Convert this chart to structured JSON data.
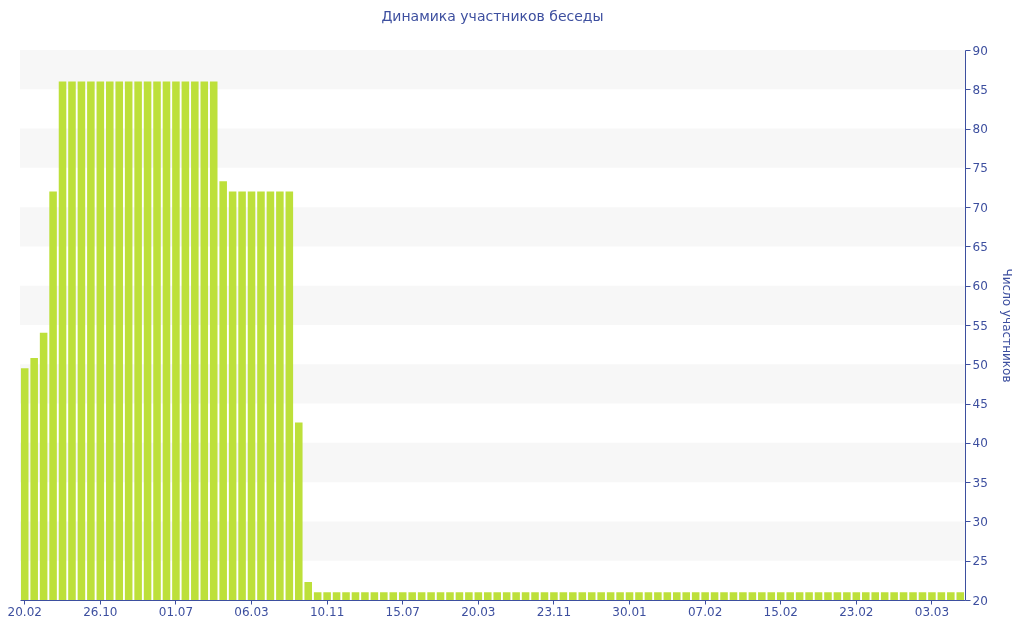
{
  "chart_data": {
    "type": "bar",
    "title": "Динамика участников беседы",
    "ylabel": "Число участников",
    "categories": [
      "20.02",
      null,
      null,
      null,
      null,
      null,
      null,
      null,
      "26.10",
      null,
      null,
      null,
      null,
      null,
      null,
      null,
      "01.07",
      null,
      null,
      null,
      null,
      null,
      null,
      null,
      "06.03",
      null,
      null,
      null,
      null,
      null,
      null,
      null,
      "10.11",
      null,
      null,
      null,
      null,
      null,
      null,
      null,
      "15.07",
      null,
      null,
      null,
      null,
      null,
      null,
      null,
      "20.03",
      null,
      null,
      null,
      null,
      null,
      null,
      null,
      "23.11",
      null,
      null,
      null,
      null,
      null,
      null,
      null,
      "30.01",
      null,
      null,
      null,
      null,
      null,
      null,
      null,
      "07.02",
      null,
      null,
      null,
      null,
      null,
      null,
      null,
      "15.02",
      null,
      null,
      null,
      null,
      null,
      null,
      null,
      "23.02",
      null,
      null,
      null,
      null,
      null,
      null,
      null,
      "03.03",
      null,
      null,
      null
    ],
    "values": [
      49.5,
      50.8,
      54,
      72,
      86,
      86,
      86,
      86,
      86,
      86,
      86,
      86,
      86,
      86,
      86,
      86,
      86,
      86,
      86,
      86,
      86,
      73.3,
      72,
      72,
      72,
      72,
      72,
      72,
      72,
      42.6,
      22.3,
      21,
      21,
      21,
      21,
      21,
      21,
      21,
      21,
      21,
      21,
      21,
      21,
      21,
      21,
      21,
      21,
      21,
      21,
      21,
      21,
      21,
      21,
      21,
      21,
      21,
      21,
      21,
      21,
      21,
      21,
      21,
      21,
      21,
      21,
      21,
      21,
      21,
      21,
      21,
      21,
      21,
      21,
      21,
      21,
      21,
      21,
      21,
      21,
      21,
      21,
      21,
      21,
      21,
      21,
      21,
      21,
      21,
      21,
      21,
      21,
      21,
      21,
      21,
      21,
      21,
      21,
      21,
      21,
      21
    ],
    "color": "#bde03a",
    "ylim": [
      20,
      90
    ],
    "yticks": [
      20,
      25,
      30,
      35,
      40,
      45,
      50,
      55,
      60,
      65,
      70,
      75,
      80,
      85,
      90
    ],
    "bands": [
      {
        "axis": "y",
        "from": 25,
        "to": 30,
        "color": "#f7f7f7"
      },
      {
        "axis": "y",
        "from": 35,
        "to": 40,
        "color": "#f7f7f7"
      },
      {
        "axis": "y",
        "from": 45,
        "to": 50,
        "color": "#f7f7f7"
      },
      {
        "axis": "y",
        "from": 55,
        "to": 60,
        "color": "#f7f7f7"
      },
      {
        "axis": "y",
        "from": 65,
        "to": 70,
        "color": "#f7f7f7"
      },
      {
        "axis": "y",
        "from": 75,
        "to": 80,
        "color": "#f7f7f7"
      },
      {
        "axis": "y",
        "from": 85,
        "to": 90,
        "color": "#f7f7f7"
      }
    ]
  }
}
